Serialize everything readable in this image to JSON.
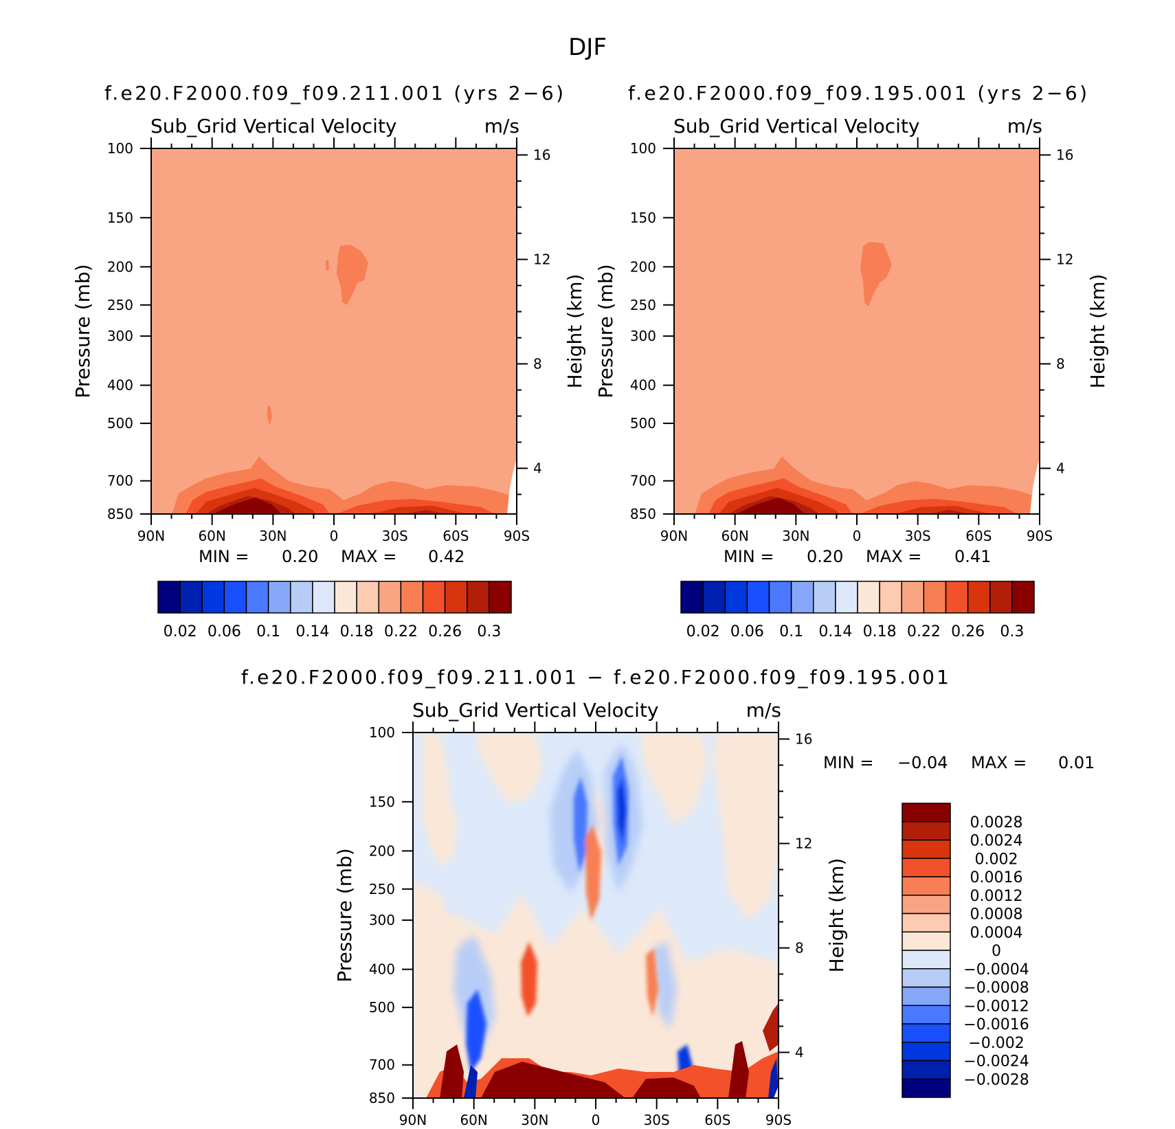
{
  "main_title": "DJF",
  "chart_data": [
    {
      "type": "heatmap",
      "title": "f.e20.F2000.f09_f09.211.001 (yrs 2−6)",
      "subtitle_left": "Sub_Grid Vertical Velocity",
      "subtitle_right": "m/s",
      "xlabel": "",
      "ylabel": "Pressure (mb)",
      "ylabel_right": "Height (km)",
      "x_ticks": [
        "90N",
        "60N",
        "30N",
        "0",
        "30S",
        "60S",
        "90S"
      ],
      "y_ticks": [
        "100",
        "150",
        "200",
        "250",
        "300",
        "400",
        "500",
        "700",
        "850"
      ],
      "y_tick_values": [
        100,
        150,
        200,
        250,
        300,
        400,
        500,
        700,
        850
      ],
      "y_right_ticks": [
        "4",
        "8",
        "12",
        "16"
      ],
      "y_right_tick_values": [
        4,
        8,
        12,
        16
      ],
      "y_scale": "log",
      "ylim": [
        850,
        100
      ],
      "xlim": [
        90,
        -90
      ],
      "min_label": "MIN =",
      "min_value": "0.20",
      "max_label": "MAX =",
      "max_value": "0.42",
      "colorbar_labels": [
        "0.02",
        "0.06",
        "0.1",
        "0.14",
        "0.18",
        "0.22",
        "0.26",
        "0.3"
      ],
      "colorbar_colors": [
        "#00007f",
        "#0020b0",
        "#0038df",
        "#1a4fff",
        "#4a79ff",
        "#86a6f8",
        "#b7cdf7",
        "#dde9fa",
        "#fbe7d7",
        "#fccbb1",
        "#f9a584",
        "#f77f53",
        "#f2512a",
        "#d8350f",
        "#b11e0a",
        "#8a0000"
      ],
      "background_level": "0.18 to 0.22"
    },
    {
      "type": "heatmap",
      "title": "f.e20.F2000.f09_f09.195.001 (yrs 2−6)",
      "subtitle_left": "Sub_Grid Vertical Velocity",
      "subtitle_right": "m/s",
      "xlabel": "",
      "ylabel": "Pressure (mb)",
      "ylabel_right": "Height (km)",
      "x_ticks": [
        "90N",
        "60N",
        "30N",
        "0",
        "30S",
        "60S",
        "90S"
      ],
      "y_ticks": [
        "100",
        "150",
        "200",
        "250",
        "300",
        "400",
        "500",
        "700",
        "850"
      ],
      "y_tick_values": [
        100,
        150,
        200,
        250,
        300,
        400,
        500,
        700,
        850
      ],
      "y_right_ticks": [
        "4",
        "8",
        "12",
        "16"
      ],
      "y_right_tick_values": [
        4,
        8,
        12,
        16
      ],
      "y_scale": "log",
      "ylim": [
        850,
        100
      ],
      "xlim": [
        90,
        -90
      ],
      "min_label": "MIN =",
      "min_value": "0.20",
      "max_label": "MAX =",
      "max_value": "0.41",
      "colorbar_labels": [
        "0.02",
        "0.06",
        "0.1",
        "0.14",
        "0.18",
        "0.22",
        "0.26",
        "0.3"
      ],
      "colorbar_colors": [
        "#00007f",
        "#0020b0",
        "#0038df",
        "#1a4fff",
        "#4a79ff",
        "#86a6f8",
        "#b7cdf7",
        "#dde9fa",
        "#fbe7d7",
        "#fccbb1",
        "#f9a584",
        "#f77f53",
        "#f2512a",
        "#d8350f",
        "#b11e0a",
        "#8a0000"
      ],
      "background_level": "0.18 to 0.22"
    },
    {
      "type": "heatmap",
      "title": "f.e20.F2000.f09_f09.211.001 − f.e20.F2000.f09_f09.195.001",
      "subtitle_left": "Sub_Grid Vertical Velocity",
      "subtitle_right": "m/s",
      "xlabel": "",
      "ylabel": "Pressure (mb)",
      "ylabel_right": "Height (km)",
      "x_ticks": [
        "90N",
        "60N",
        "30N",
        "0",
        "30S",
        "60S",
        "90S"
      ],
      "y_ticks": [
        "100",
        "150",
        "200",
        "250",
        "300",
        "400",
        "500",
        "700",
        "850"
      ],
      "y_tick_values": [
        100,
        150,
        200,
        250,
        300,
        400,
        500,
        700,
        850
      ],
      "y_right_ticks": [
        "4",
        "8",
        "12",
        "16"
      ],
      "y_right_tick_values": [
        4,
        8,
        12,
        16
      ],
      "y_scale": "log",
      "ylim": [
        850,
        100
      ],
      "xlim": [
        90,
        -90
      ],
      "min_label": "MIN =",
      "min_value": "−0.04",
      "max_label": "MAX =",
      "max_value": "0.01",
      "colorbar_labels": [
        "0.0028",
        "0.0024",
        "0.002",
        "0.0016",
        "0.0012",
        "0.0008",
        "0.0004",
        "0",
        "−0.0004",
        "−0.0008",
        "−0.0012",
        "−0.0016",
        "−0.002",
        "−0.0024",
        "−0.0028"
      ],
      "colorbar_colors": [
        "#8a0000",
        "#b11e0a",
        "#d8350f",
        "#f2512a",
        "#f77f53",
        "#f9a584",
        "#fccbb1",
        "#fbe7d7",
        "#dde9fa",
        "#b7cdf7",
        "#86a6f8",
        "#4a79ff",
        "#1a4fff",
        "#0038df",
        "#0020b0",
        "#00007f"
      ]
    }
  ]
}
